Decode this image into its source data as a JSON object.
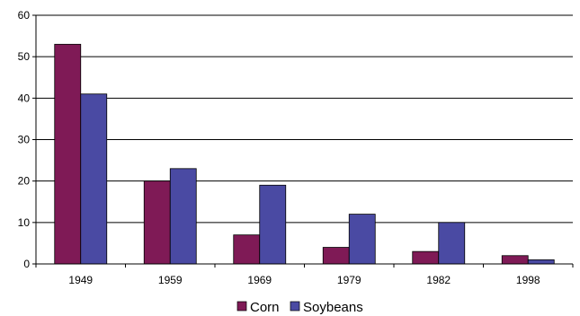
{
  "chart_data": {
    "type": "bar",
    "title": "",
    "xlabel": "",
    "ylabel": "",
    "categories": [
      "1949",
      "1959",
      "1969",
      "1979",
      "1982",
      "1998"
    ],
    "series": [
      {
        "name": "Corn",
        "values": [
          53,
          20,
          7,
          4,
          3,
          2
        ],
        "color": "#7f1a56"
      },
      {
        "name": "Soybeans",
        "values": [
          41,
          23,
          19,
          12,
          10,
          1
        ],
        "color": "#4a4aa3"
      }
    ],
    "ylim": [
      0,
      60
    ],
    "yticks": [
      "0",
      "10",
      "20",
      "30",
      "40",
      "50",
      "60"
    ],
    "grid": true,
    "legend_position": "bottom-center"
  }
}
